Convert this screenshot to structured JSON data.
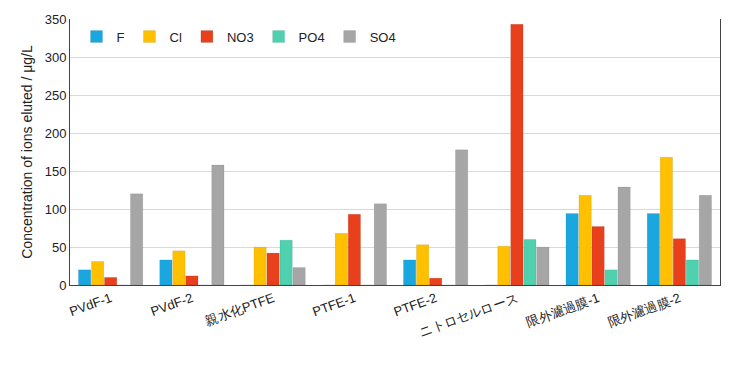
{
  "chart_data": {
    "type": "bar",
    "y_label": "Concentration of ions eluted / μg/L",
    "categories": [
      "PVdF-1",
      "PVdF-2",
      "親水化PTFE",
      "PTFE-1",
      "PTFE-2",
      "ニトロセルロース",
      "限外濾過膜-1",
      "限外濾過膜-2"
    ],
    "series": [
      {
        "name": "F",
        "color": "#1aa7e0",
        "values": [
          20,
          33,
          0,
          0,
          33,
          0,
          94,
          94
        ]
      },
      {
        "name": "Cl",
        "color": "#ffc000",
        "values": [
          31,
          45,
          50,
          68,
          53,
          51,
          118,
          168
        ]
      },
      {
        "name": "NO3",
        "color": "#e8401c",
        "values": [
          10,
          12,
          42,
          93,
          9,
          343,
          77,
          61
        ]
      },
      {
        "name": "PO4",
        "color": "#4fd1b0",
        "values": [
          0,
          0,
          59,
          0,
          0,
          60,
          20,
          33
        ]
      },
      {
        "name": "SO4",
        "color": "#a6a6a6",
        "values": [
          120,
          158,
          23,
          107,
          178,
          50,
          129,
          118
        ]
      }
    ],
    "ylim": [
      0,
      350
    ],
    "yticks": [
      0,
      50,
      100,
      150,
      200,
      250,
      300,
      350
    ],
    "grid": true,
    "legend": "upper left"
  }
}
